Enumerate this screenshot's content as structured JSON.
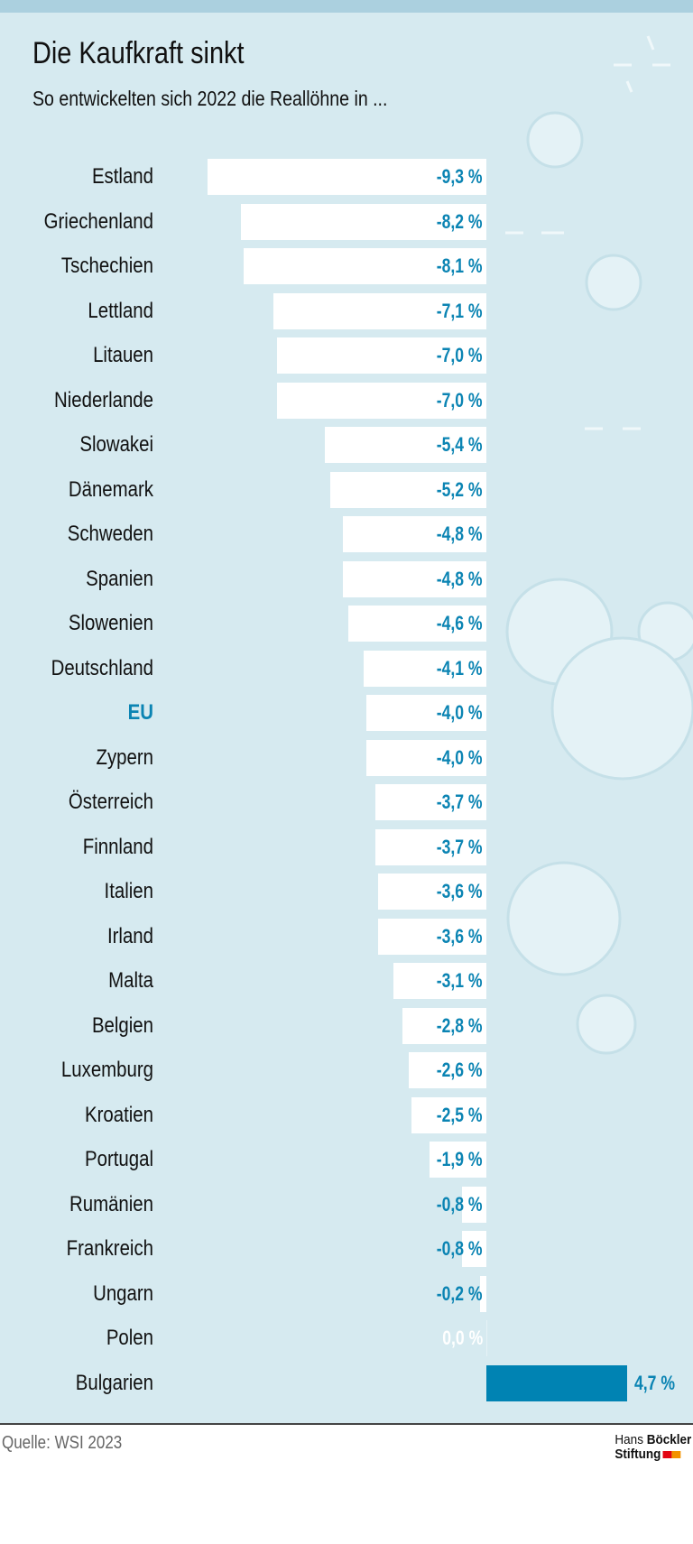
{
  "chart_data": {
    "type": "bar",
    "orientation": "horizontal",
    "title": "Die Kaufkraft sinkt",
    "subtitle": "So entwickelten sich 2022 die Reallöhne in ...",
    "categories": [
      "Estland",
      "Griechenland",
      "Tschechien",
      "Lettland",
      "Litauen",
      "Niederlande",
      "Slowakei",
      "Dänemark",
      "Schweden",
      "Spanien",
      "Slowenien",
      "Deutschland",
      "EU",
      "Zypern",
      "Österreich",
      "Finnland",
      "Italien",
      "Irland",
      "Malta",
      "Belgien",
      "Luxemburg",
      "Kroatien",
      "Portugal",
      "Rumänien",
      "Frankreich",
      "Ungarn",
      "Polen",
      "Bulgarien"
    ],
    "values": [
      -9.3,
      -8.2,
      -8.1,
      -7.1,
      -7.0,
      -7.0,
      -5.4,
      -5.2,
      -4.8,
      -4.8,
      -4.6,
      -4.1,
      -4.0,
      -4.0,
      -3.7,
      -3.7,
      -3.6,
      -3.6,
      -3.1,
      -2.8,
      -2.6,
      -2.5,
      -1.9,
      -0.8,
      -0.8,
      -0.2,
      0.0,
      4.7
    ],
    "value_labels": [
      "-9,3 %",
      "-8,2 %",
      "-8,1 %",
      "-7,1 %",
      "-7,0 %",
      "-7,0 %",
      "-5,4 %",
      "-5,2 %",
      "-4,8 %",
      "-4,8 %",
      "-4,6 %",
      "-4,1 %",
      "-4,0 %",
      "-4,0 %",
      "-3,7 %",
      "-3,7 %",
      "-3,6 %",
      "-3,6 %",
      "-3,1 %",
      "-2,8 %",
      "-2,6 %",
      "-2,5 %",
      "-1,9 %",
      "-0,8 %",
      "-0,8 %",
      "-0,2 %",
      "0,0 %",
      "4,7 %"
    ],
    "highlight": "EU",
    "unit": "%",
    "xlim": [
      -9.3,
      4.7
    ],
    "grid": false,
    "colors": {
      "negative_bar": "#ffffff",
      "positive_bar": "#0083b3",
      "value_text": "#0b84b3",
      "highlight_label": "#0b84b3",
      "background": "#d6eaf0"
    }
  },
  "footer": {
    "source": "Quelle: WSI 2023",
    "logo_line1_light": "Hans",
    "logo_line1_bold": "Böckler",
    "logo_line2": "Stiftung",
    "logo_colors": [
      "#e30613",
      "#f39200"
    ]
  }
}
